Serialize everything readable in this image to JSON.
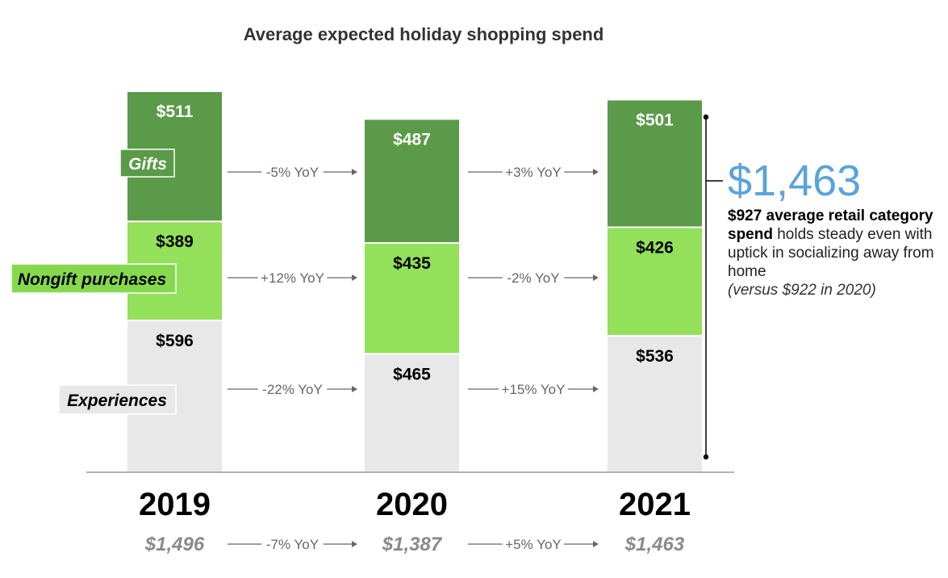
{
  "chart_data": {
    "type": "bar",
    "stacked": true,
    "title": "Average expected holiday shopping spend",
    "categories": [
      "2019",
      "2020",
      "2021"
    ],
    "series": [
      {
        "name": "Experiences",
        "values": [
          596,
          465,
          536
        ],
        "labels": [
          "$596",
          "$465",
          "$536"
        ],
        "color": "#e8e8e8",
        "label_color": "#000000",
        "legend_bg": "#e8e8e8"
      },
      {
        "name": "Nongift purchases",
        "values": [
          389,
          435,
          426
        ],
        "labels": [
          "$389",
          "$435",
          "$426"
        ],
        "color": "#93e05a",
        "label_color": "#000000",
        "legend_bg": "#86d94f"
      },
      {
        "name": "Gifts",
        "values": [
          511,
          487,
          501
        ],
        "labels": [
          "$511",
          "$487",
          "$501"
        ],
        "color": "#5a9a48",
        "label_color": "#ffffff",
        "legend_bg": "#5a9a48"
      }
    ],
    "yoy_changes": {
      "Gifts": [
        "-5% YoY",
        "+3% YoY"
      ],
      "Nongift purchases": [
        "+12% YoY",
        "-2% YoY"
      ],
      "Experiences": [
        "-22% YoY",
        "+15% YoY"
      ]
    },
    "totals": [
      "$1,496",
      "$1,387",
      "$1,463"
    ],
    "total_yoy": [
      "-7% YoY",
      "+5% YoY"
    ],
    "ylim": [
      0,
      1496
    ],
    "xlabel": "",
    "ylabel": ""
  },
  "annotation": {
    "big_total": "$1,463",
    "strong_text": "$927 average retail category spend",
    "body_text": " holds steady even with uptick in socializing away from home",
    "note_text": "(versus $922 in 2020)"
  },
  "colors": {
    "accent_blue": "#5ba3d9",
    "axis": "#999999",
    "arrow": "#666666"
  }
}
